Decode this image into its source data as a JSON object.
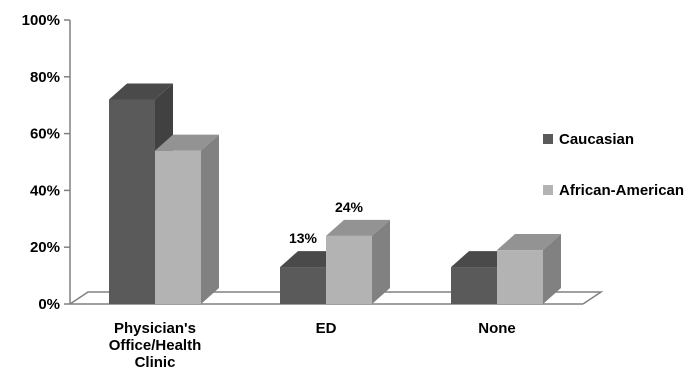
{
  "chart_data": {
    "type": "bar",
    "title": "",
    "xlabel": "",
    "ylabel": "",
    "categories": [
      "Physician's Office/Health Clinic",
      "ED",
      "None"
    ],
    "category_lines": [
      [
        "Physician's",
        "Office/Health",
        "Clinic"
      ],
      [
        "ED"
      ],
      [
        "None"
      ]
    ],
    "series": [
      {
        "name": "Caucasian",
        "values": [
          72,
          13,
          13
        ],
        "color": "#5a5a5a"
      },
      {
        "name": "African-American",
        "values": [
          54,
          24,
          19
        ],
        "color": "#b3b3b3"
      }
    ],
    "data_labels": [
      {
        "series": 0,
        "category": 1,
        "text": "13%"
      },
      {
        "series": 1,
        "category": 1,
        "text": "24%"
      }
    ],
    "ylim": [
      0,
      100
    ],
    "yticks": [
      "0%",
      "20%",
      "40%",
      "60%",
      "80%",
      "100%"
    ],
    "ytick_values": [
      0,
      20,
      40,
      60,
      80,
      100
    ],
    "legend_position": "right",
    "grid": false,
    "style": "3d-clustered-column"
  }
}
